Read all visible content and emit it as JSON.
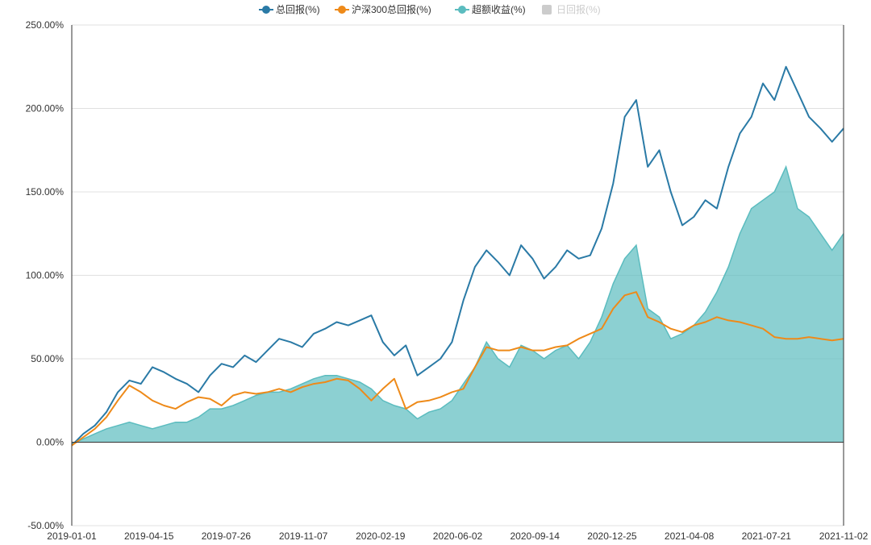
{
  "chart_data": {
    "type": "line",
    "title": "",
    "xlabel": "",
    "ylabel": "",
    "ylim": [
      -50,
      250
    ],
    "y_ticks": [
      -50,
      0,
      50,
      100,
      150,
      200,
      250
    ],
    "y_tick_labels": [
      "-50.00%",
      "0.00%",
      "50.00%",
      "100.00%",
      "150.00%",
      "200.00%",
      "250.00%"
    ],
    "x_tick_labels": [
      "2019-01-01",
      "2019-04-15",
      "2019-07-26",
      "2019-11-07",
      "2020-02-19",
      "2020-06-02",
      "2020-09-14",
      "2020-12-25",
      "2021-04-08",
      "2021-07-21",
      "2021-11-02"
    ],
    "legend_position": "top-center",
    "grid": true,
    "series": [
      {
        "name": "总回报(%)",
        "color": "#2a7aa6",
        "style": "line",
        "visible": true,
        "values": [
          -2,
          5,
          10,
          18,
          30,
          37,
          35,
          45,
          42,
          38,
          35,
          30,
          40,
          47,
          45,
          52,
          48,
          55,
          62,
          60,
          57,
          65,
          68,
          72,
          70,
          73,
          76,
          60,
          52,
          58,
          40,
          45,
          50,
          60,
          85,
          105,
          115,
          108,
          100,
          118,
          110,
          98,
          105,
          115,
          110,
          112,
          128,
          155,
          195,
          205,
          165,
          175,
          150,
          130,
          135,
          145,
          140,
          165,
          185,
          195,
          215,
          205,
          225,
          210,
          195,
          188,
          180,
          188
        ]
      },
      {
        "name": "沪深300总回报(%)",
        "color": "#ee8a19",
        "style": "line",
        "visible": true,
        "values": [
          -2,
          3,
          8,
          15,
          25,
          34,
          30,
          25,
          22,
          20,
          24,
          27,
          26,
          22,
          28,
          30,
          29,
          30,
          32,
          30,
          33,
          35,
          36,
          38,
          37,
          32,
          25,
          32,
          38,
          20,
          24,
          25,
          27,
          30,
          32,
          45,
          57,
          55,
          55,
          57,
          55,
          55,
          57,
          58,
          62,
          65,
          68,
          80,
          88,
          90,
          75,
          72,
          68,
          66,
          70,
          72,
          75,
          73,
          72,
          70,
          68,
          63,
          62,
          62,
          63,
          62,
          61,
          62
        ]
      },
      {
        "name": "超额收益(%)",
        "color": "#5bbcbf",
        "style": "area",
        "visible": true,
        "values": [
          -1,
          2,
          5,
          8,
          10,
          12,
          10,
          8,
          10,
          12,
          12,
          15,
          20,
          20,
          22,
          25,
          28,
          30,
          30,
          32,
          35,
          38,
          40,
          40,
          38,
          36,
          32,
          25,
          22,
          20,
          14,
          18,
          20,
          25,
          35,
          45,
          60,
          50,
          45,
          58,
          55,
          50,
          55,
          58,
          50,
          60,
          75,
          95,
          110,
          118,
          80,
          75,
          62,
          65,
          70,
          78,
          90,
          105,
          125,
          140,
          145,
          150,
          165,
          140,
          135,
          125,
          115,
          125
        ]
      },
      {
        "name": "日回报(%)",
        "color": "#cccccc",
        "style": "bar",
        "visible": false,
        "values": []
      }
    ]
  }
}
